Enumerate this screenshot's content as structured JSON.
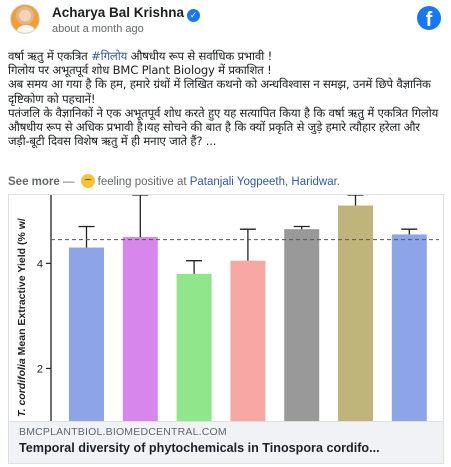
{
  "post": {
    "author": "Acharya Bal Krishna",
    "time": "about a month ago",
    "text_lines": [
      "वर्षा ऋतु में एकत्रित ",
      "गिलोय पर अभूतपूर्व शोध BMC Plant Biology में प्रकाशित !",
      "अब समय आ गया है कि हम, हमारे ग्रंथों में लिखित कथनो को अन्धविश्वास न समझ, उनमें छिपे वैज्ञानिक दृष्टिकोण को पहचानें!",
      "पतंजलि के वैज्ञानिकों ने एक अभूतपूर्व शोध करते हुए यह सत्यापित किया है कि वर्षा ऋतु में एकत्रित गिलोय औषधीय रूप से अधिक प्रभावी है।यह सोचने की बात है कि क्यों प्रकृति से जुड़े हमारे त्यौहार हरेला और जड़ी-बूटी दिवस विशेष ऋतु में ही मनाए जाते हैं? ..."
    ],
    "hashtag": "#गिलोय",
    "line1_rest": " औषधीय रूप से सर्वाधिक प्रभावी !",
    "see_more": "See more",
    "feeling_sep": " — ",
    "feeling_text": "feeling positive at ",
    "place": "Patanjali Yogpeeth, Haridwar",
    "place_suffix": "."
  },
  "link": {
    "domain": "BMCPLANTBIOL.BIOMEDCENTRAL.COM",
    "title": "Temporal diversity of phytochemicals in Tinospora cordifo..."
  },
  "chart_data": {
    "type": "bar",
    "ylabel_italic": "T. cordifolia",
    "ylabel_rest": " Mean Extractive Yield (% w/",
    "yticks": [
      2,
      4
    ],
    "ylim": [
      1.0,
      5.3
    ],
    "reference_line": 4.45,
    "bars": [
      {
        "value": 4.3,
        "error": 0.4,
        "color": "#8ea4e8"
      },
      {
        "value": 4.5,
        "error": 0.8,
        "color": "#d786ec"
      },
      {
        "value": 3.8,
        "error": 0.25,
        "color": "#90e68a"
      },
      {
        "value": 4.05,
        "error": 0.6,
        "color": "#f7a7a4"
      },
      {
        "value": 4.65,
        "error": 0.05,
        "color": "#999999"
      },
      {
        "value": 5.1,
        "error": 0.2,
        "color": "#bfb47a"
      },
      {
        "value": 4.55,
        "error": 0.1,
        "color": "#8ea4e8"
      }
    ]
  }
}
